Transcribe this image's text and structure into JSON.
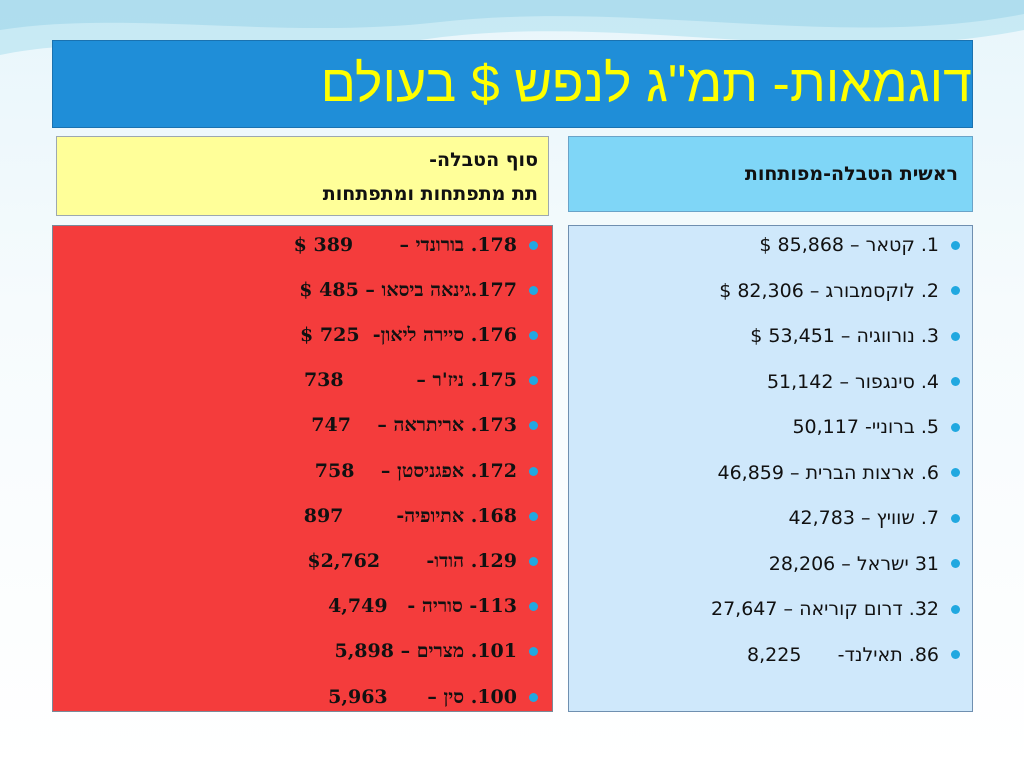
{
  "slide": {
    "title": "דוגמאות- תמ\"ג לנפש $ בעולם"
  },
  "headers": {
    "top_of_table": "ראשית הטבלה-מפותחות",
    "bottom_of_table_line1": "סוף הטבלה-",
    "bottom_of_table_line2": "תת מתפתחות ומתפתחות"
  },
  "developed_list": [
    "1. קטאר – 85,868 $",
    "2. לוקסמבורג – 82,306 $",
    "3. נורווגיה – 53,451 $",
    "4. סינגפור – 51,142",
    "5. ברוניי- 50,117",
    "6. ארצות הברית – 46,859",
    "7. שוויץ – 42,783",
    "31 ישראל – 28,206",
    "32. דרום קוריאה – 27,647",
    "86. תאילנד-      8,225"
  ],
  "developing_list": [
    "178. בורונדי –       389 $",
    "177.גינאה ביסאו – 485 $",
    "176. סיירה ליאון-  725 $",
    "175. ניז'ר –           738",
    "173. אריתראה –    747",
    "172. אפגניסטן –    758",
    "168. אתיופיה-        897",
    "129. הודו-       $2,762",
    "113- סוריה -   4,749",
    "101. מצרים – 5,898",
    "100. סין –      5,963"
  ],
  "colors": {
    "title_bg": "#1f8ed8",
    "title_text": "#ffff00",
    "developed_header_bg": "#7fd6f7",
    "developing_header_bg": "#ffff99",
    "developed_panel_bg": "#cfe8fb",
    "developing_panel_bg": "#f43c3c",
    "bullet": "#21a8e0"
  }
}
